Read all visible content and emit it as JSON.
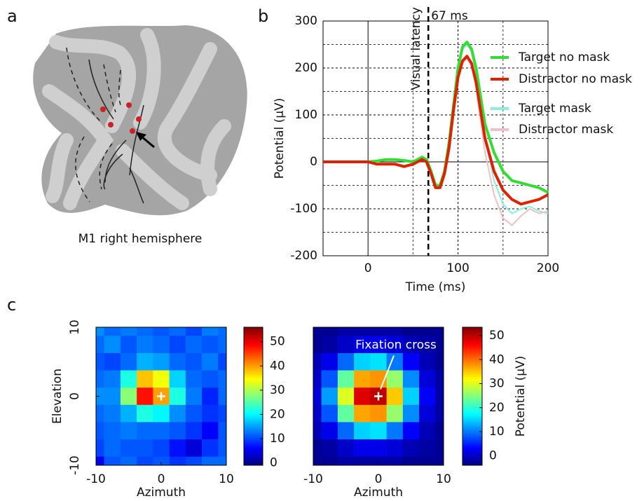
{
  "panel_labels": [
    "a",
    "b",
    "c"
  ],
  "panel_a": {
    "caption": "M1 right hemisphere"
  },
  "chart_data": [
    {
      "type": "line",
      "xlabel": "Time (ms)",
      "ylabel": "Potential (µV)",
      "x": [
        -50,
        -25,
        0,
        10,
        20,
        30,
        40,
        50,
        55,
        60,
        65,
        70,
        75,
        80,
        85,
        90,
        95,
        100,
        105,
        110,
        115,
        120,
        125,
        130,
        140,
        150,
        160,
        170,
        180,
        190,
        200
      ],
      "series": [
        {
          "name": "Target no mask",
          "color": "#33dd33",
          "width": 4,
          "values": [
            0,
            0,
            0,
            2,
            5,
            5,
            3,
            0,
            5,
            10,
            5,
            -20,
            -50,
            -50,
            -20,
            40,
            120,
            200,
            245,
            255,
            240,
            200,
            140,
            80,
            20,
            -20,
            -40,
            -45,
            -50,
            -55,
            -65
          ]
        },
        {
          "name": "Distractor no mask",
          "color": "#dd2200",
          "width": 4,
          "values": [
            0,
            0,
            0,
            -5,
            -5,
            -5,
            -10,
            -5,
            0,
            5,
            0,
            -25,
            -55,
            -55,
            -25,
            30,
            110,
            180,
            215,
            225,
            210,
            170,
            110,
            50,
            -20,
            -60,
            -80,
            -90,
            -85,
            -80,
            -70
          ]
        },
        {
          "name": "Target mask",
          "color": "#88eedd",
          "width": 2,
          "values": [
            0,
            0,
            0,
            1,
            4,
            4,
            2,
            0,
            4,
            9,
            4,
            -22,
            -52,
            -52,
            -22,
            36,
            115,
            195,
            240,
            250,
            235,
            190,
            120,
            50,
            -40,
            -90,
            -110,
            -100,
            -95,
            -105,
            -110
          ]
        },
        {
          "name": "Distractor mask",
          "color": "#f0c0c8",
          "width": 2,
          "values": [
            0,
            0,
            0,
            -4,
            -4,
            -4,
            -8,
            -4,
            1,
            6,
            1,
            -24,
            -54,
            -54,
            -24,
            28,
            105,
            175,
            210,
            220,
            205,
            160,
            90,
            20,
            -70,
            -120,
            -135,
            -115,
            -100,
            -110,
            -105
          ]
        }
      ],
      "xlim": [
        -50,
        200
      ],
      "xticks": [
        0,
        100,
        200
      ],
      "minor_xticks": [
        50,
        150
      ],
      "ylim": [
        -200,
        300
      ],
      "yticks": [
        -200,
        -100,
        0,
        100,
        200,
        300
      ],
      "minor_yticks": [
        -150,
        -50,
        50,
        150,
        250
      ],
      "grid": true,
      "legend": "upper right",
      "latency": {
        "value": 67,
        "label": "67 ms"
      },
      "latency_label": "Visual latency"
    },
    {
      "type": "heatmap",
      "xlabel": "Azimuth",
      "ylabel": "Elevation",
      "colormap": "jet",
      "x": [
        -10,
        -7.5,
        -5,
        -2.5,
        0,
        2.5,
        5,
        7.5,
        10
      ],
      "y": [
        10,
        7.5,
        5,
        2.5,
        0,
        -2.5,
        -5,
        -7.5,
        -10
      ],
      "values": [
        [
          14,
          12,
          13,
          12,
          11,
          12,
          10,
          13,
          12
        ],
        [
          12,
          14,
          11,
          13,
          12,
          10,
          12,
          11,
          12
        ],
        [
          11,
          10,
          12,
          16,
          15,
          12,
          11,
          13,
          10
        ],
        [
          12,
          13,
          22,
          38,
          34,
          18,
          12,
          11,
          12
        ],
        [
          14,
          14,
          28,
          48,
          40,
          22,
          13,
          8,
          12
        ],
        [
          12,
          13,
          16,
          22,
          20,
          14,
          11,
          9,
          10
        ],
        [
          11,
          12,
          13,
          12,
          12,
          11,
          9,
          6,
          11
        ],
        [
          10,
          12,
          11,
          11,
          10,
          7,
          4,
          9,
          11
        ],
        [
          5,
          11,
          12,
          10,
          11,
          9,
          10,
          12,
          12
        ]
      ],
      "xlim": [
        -10,
        10
      ],
      "xticks": [
        -10,
        0,
        10
      ],
      "ylim": [
        -10,
        10
      ],
      "yticks": [
        -10,
        0,
        10
      ],
      "clim": [
        -1,
        56
      ],
      "cticks": [
        0,
        10,
        20,
        30,
        40,
        50
      ]
    },
    {
      "type": "heatmap",
      "xlabel": "Azimuth",
      "colormap": "jet",
      "annotation": "Fixation cross",
      "clabel": "Potential (µV)",
      "x": [
        -10,
        -7.5,
        -5,
        -2.5,
        0,
        2.5,
        5,
        7.5,
        10
      ],
      "y": [
        10,
        7.5,
        5,
        2.5,
        0,
        -2.5,
        -5,
        -7.5,
        -10
      ],
      "values": [
        [
          -3,
          -3,
          -2,
          -2,
          -2,
          -2,
          -3,
          -3,
          -3
        ],
        [
          -3,
          -2,
          0,
          2,
          2,
          1,
          -1,
          -2,
          -3
        ],
        [
          -1,
          2,
          9,
          15,
          16,
          10,
          3,
          -1,
          -3
        ],
        [
          0,
          8,
          23,
          37,
          38,
          26,
          11,
          1,
          -2
        ],
        [
          1,
          12,
          30,
          48,
          50,
          35,
          15,
          3,
          -2
        ],
        [
          0,
          8,
          23,
          37,
          38,
          26,
          11,
          1,
          -2
        ],
        [
          -1,
          2,
          9,
          15,
          16,
          10,
          3,
          -1,
          -3
        ],
        [
          -3,
          -2,
          0,
          2,
          2,
          1,
          -1,
          -2,
          -3
        ],
        [
          -3,
          -3,
          -2,
          -2,
          -2,
          -2,
          -3,
          -3,
          -3
        ]
      ],
      "xlim": [
        -10,
        10
      ],
      "xticks": [
        -10,
        0,
        10
      ],
      "ylim": [
        -10,
        10
      ],
      "clim": [
        -4,
        53.5
      ],
      "cticks": [
        0,
        10,
        20,
        30,
        40,
        50
      ]
    }
  ]
}
